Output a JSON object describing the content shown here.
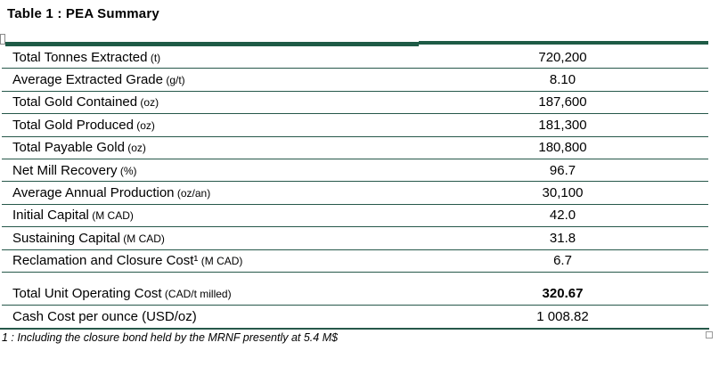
{
  "title": "Table 1 : PEA Summary",
  "colors": {
    "header_bar": "#1E5B46",
    "row_line": "#26584A"
  },
  "table": {
    "rows": [
      {
        "label": "Total Tonnes Extracted",
        "unit": " (t)",
        "value": "720,200"
      },
      {
        "label": "Average Extracted Grade",
        "unit": " (g/t)",
        "value": "8.10"
      },
      {
        "label": "Total Gold Contained",
        "unit": " (oz)",
        "value": "187,600"
      },
      {
        "label": "Total Gold Produced",
        "unit": " (oz)",
        "value": "181,300"
      },
      {
        "label": "Total Payable Gold",
        "unit": " (oz)",
        "value": "180,800"
      },
      {
        "label": "Net Mill Recovery",
        "unit": " (%)",
        "value": "96.7"
      },
      {
        "label": "Average Annual Production",
        "unit": " (oz/an)",
        "value": "30,100"
      },
      {
        "label": "Initial Capital",
        "unit": " (M CAD)",
        "value": "42.0"
      },
      {
        "label": "Sustaining Capital",
        "unit": " (M CAD)",
        "value": "31.8"
      },
      {
        "label": "Reclamation and Closure Cost¹",
        "unit": " (M CAD)",
        "value": "6.7"
      },
      {
        "label": "Total Unit Operating Cost",
        "unit": " (CAD/t milled)",
        "value": "320.67"
      },
      {
        "label": "Cash Cost per ounce",
        "unit": " (USD/oz)",
        "value": "1 008.82"
      }
    ]
  },
  "footnote": "1 : Including the closure bond held by the MRNF presently at 5.4 M$"
}
